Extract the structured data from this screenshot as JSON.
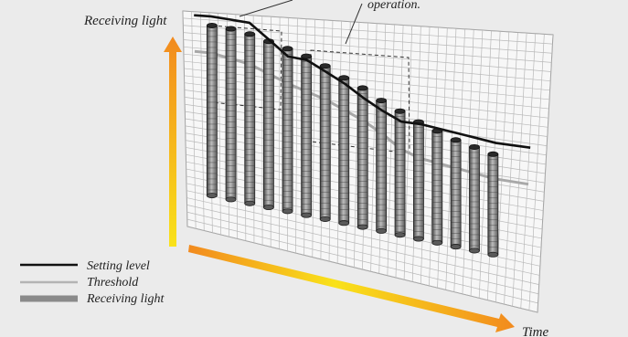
{
  "axes": {
    "y_label": "Receiving light",
    "x_label": "Time"
  },
  "callout": {
    "text": "operation."
  },
  "legend": {
    "items": [
      {
        "label": "Setting level",
        "color": "#111111"
      },
      {
        "label": "Threshold",
        "color": "#b4b4b4"
      },
      {
        "label": "Receiving light",
        "color": "#8a8a8a"
      }
    ]
  },
  "colors": {
    "background": "#ebebeb",
    "grid": "#b9b9b9",
    "arrow_start": "#f28a1e",
    "arrow_mid": "#f9e21a",
    "cylinder_dark": "#4a4a4a",
    "cylinder_light": "#bcbcbc"
  },
  "chart_data": {
    "type": "bar",
    "series": [
      {
        "name": "Receiving light",
        "values": [
          0.93,
          0.92,
          0.9,
          0.87,
          0.84,
          0.81,
          0.77,
          0.72,
          0.68,
          0.63,
          0.59,
          0.55,
          0.52,
          0.49,
          0.47,
          0.45
        ]
      },
      {
        "name": "Setting level",
        "values": [
          0.98,
          0.97,
          0.96,
          0.88,
          0.8,
          0.79,
          0.74,
          0.69,
          0.63,
          0.58,
          0.54,
          0.54,
          0.53,
          0.52,
          0.51,
          0.5
        ]
      },
      {
        "name": "Threshold",
        "values": [
          0.78,
          0.76,
          0.74,
          0.7,
          0.66,
          0.63,
          0.6,
          0.56,
          0.52,
          0.47,
          0.41,
          0.38,
          0.37,
          0.36,
          0.35,
          0.34
        ]
      }
    ]
  }
}
